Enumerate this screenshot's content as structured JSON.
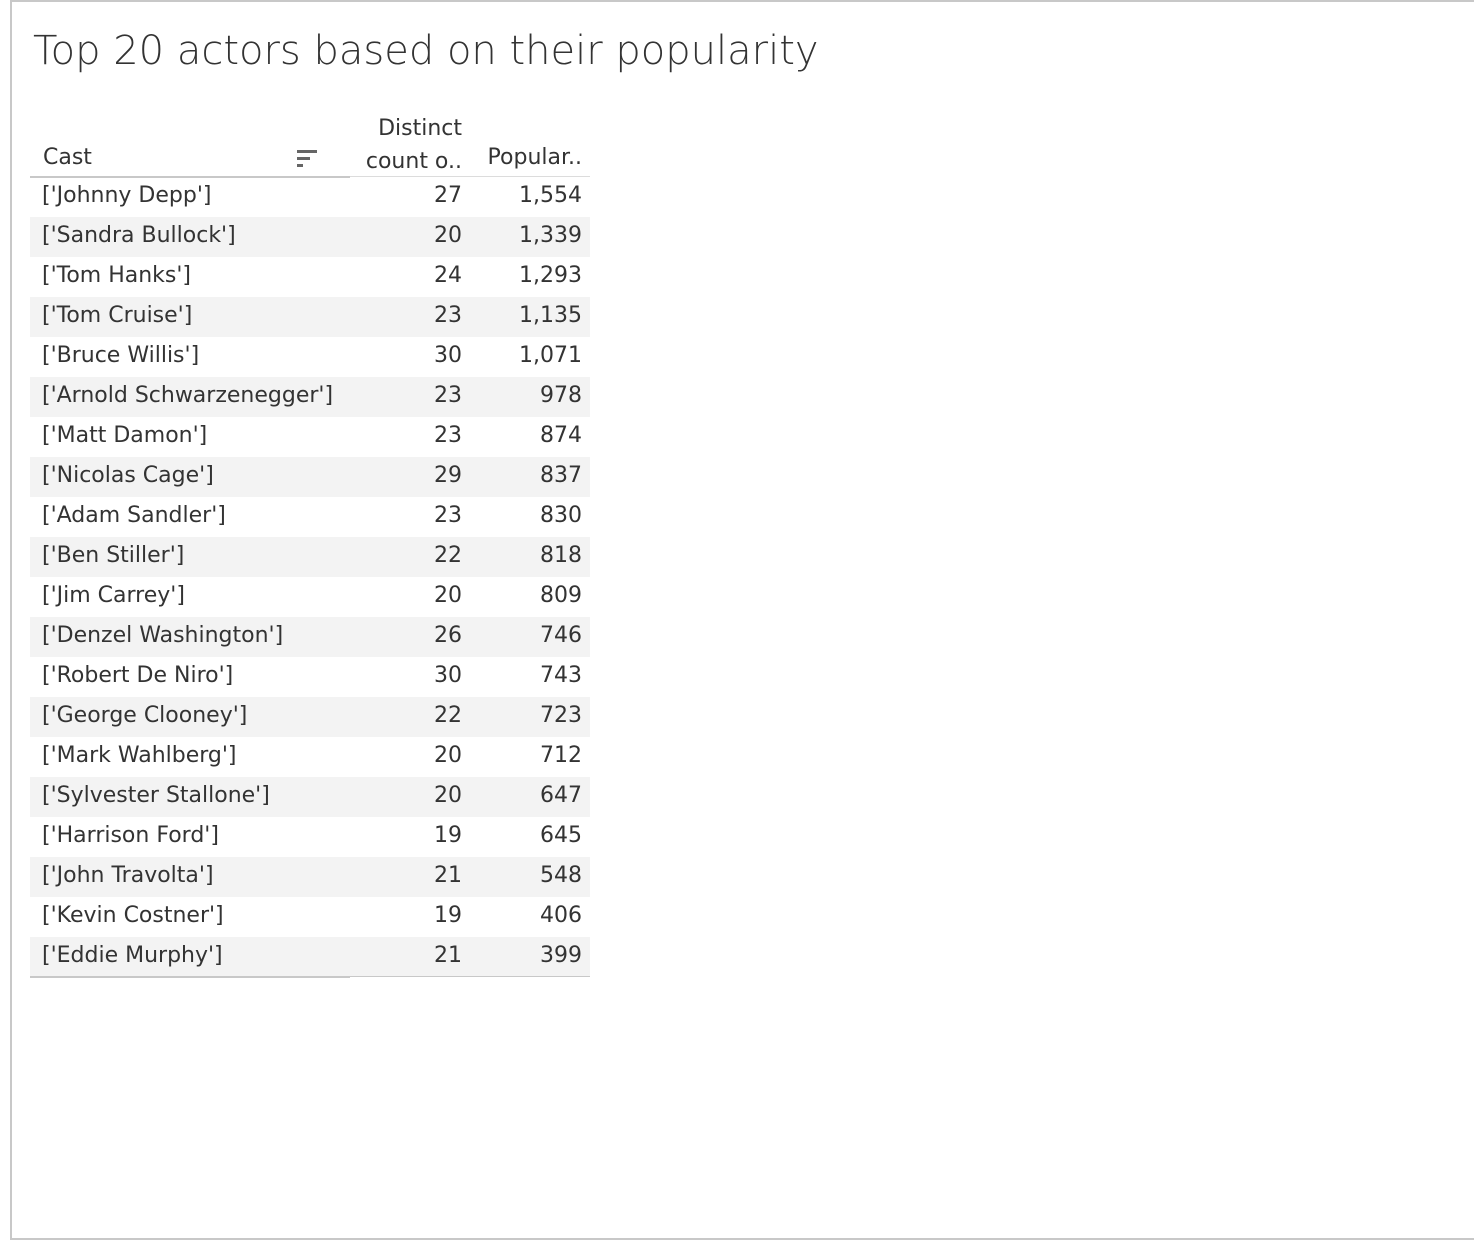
{
  "chart_data": {
    "type": "table",
    "title": "Top 20 actors based on their popularity",
    "columns": [
      "Cast",
      "Distinct count o..",
      "Popular.."
    ],
    "header": {
      "cast": "Cast",
      "count_line1": "Distinct",
      "count_line2": "count o..",
      "popularity": "Popular.."
    },
    "rows": [
      {
        "cast": "['Johnny Depp']",
        "count": "27",
        "popularity": "1,554"
      },
      {
        "cast": "['Sandra Bullock']",
        "count": "20",
        "popularity": "1,339"
      },
      {
        "cast": "['Tom Hanks']",
        "count": "24",
        "popularity": "1,293"
      },
      {
        "cast": "['Tom Cruise']",
        "count": "23",
        "popularity": "1,135"
      },
      {
        "cast": "['Bruce Willis']",
        "count": "30",
        "popularity": "1,071"
      },
      {
        "cast": "['Arnold Schwarzenegger']",
        "count": "23",
        "popularity": "978"
      },
      {
        "cast": "['Matt Damon']",
        "count": "23",
        "popularity": "874"
      },
      {
        "cast": "['Nicolas Cage']",
        "count": "29",
        "popularity": "837"
      },
      {
        "cast": "['Adam Sandler']",
        "count": "23",
        "popularity": "830"
      },
      {
        "cast": "['Ben Stiller']",
        "count": "22",
        "popularity": "818"
      },
      {
        "cast": "['Jim Carrey']",
        "count": "20",
        "popularity": "809"
      },
      {
        "cast": "['Denzel Washington']",
        "count": "26",
        "popularity": "746"
      },
      {
        "cast": "['Robert De Niro']",
        "count": "30",
        "popularity": "743"
      },
      {
        "cast": "['George Clooney']",
        "count": "22",
        "popularity": "723"
      },
      {
        "cast": "['Mark Wahlberg']",
        "count": "20",
        "popularity": "712"
      },
      {
        "cast": "['Sylvester Stallone']",
        "count": "20",
        "popularity": "647"
      },
      {
        "cast": "['Harrison Ford']",
        "count": "19",
        "popularity": "645"
      },
      {
        "cast": "['John Travolta']",
        "count": "21",
        "popularity": "548"
      },
      {
        "cast": "['Kevin Costner']",
        "count": "19",
        "popularity": "406"
      },
      {
        "cast": "['Eddie Murphy']",
        "count": "21",
        "popularity": "399"
      }
    ]
  },
  "icons": {
    "sort": "sort-descending-icon"
  },
  "colors": {
    "text": "#333333",
    "alt_row": "#f3f3f3",
    "rule": "#c8c8c8"
  }
}
